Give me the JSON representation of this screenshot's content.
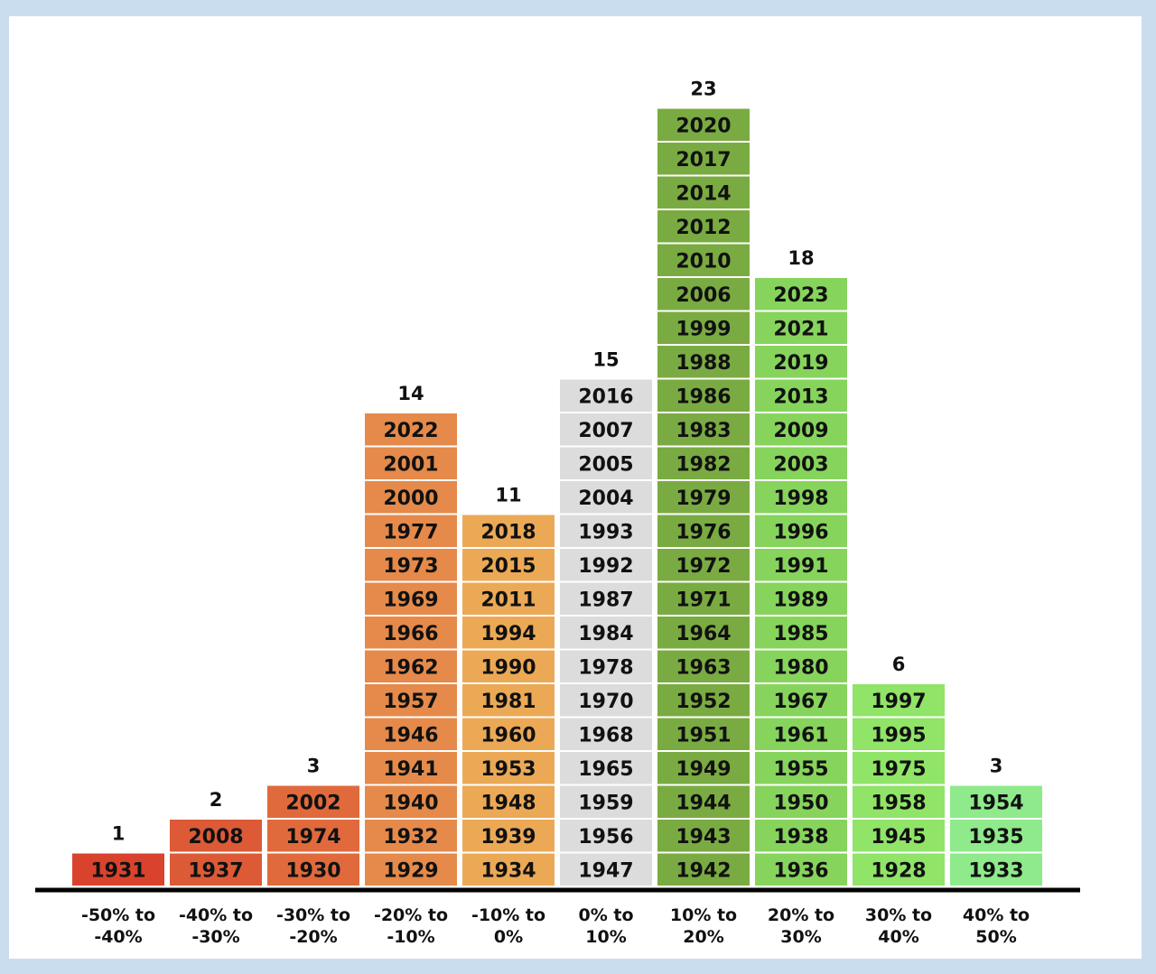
{
  "chart_data": {
    "type": "bar",
    "title": "",
    "xlabel": "",
    "ylabel": "",
    "categories": [
      [
        "-50% to",
        "-40%"
      ],
      [
        "-40% to",
        "-30%"
      ],
      [
        "-30% to",
        "-20%"
      ],
      [
        "-20% to",
        "-10%"
      ],
      [
        "-10% to",
        "0%"
      ],
      [
        "0% to",
        "10%"
      ],
      [
        "10% to",
        "20%"
      ],
      [
        "20% to",
        "30%"
      ],
      [
        "30% to",
        "40%"
      ],
      [
        "40% to",
        "50%"
      ]
    ],
    "values": [
      1,
      2,
      3,
      14,
      11,
      15,
      23,
      18,
      6,
      3
    ],
    "years": [
      [
        "1931"
      ],
      [
        "2008",
        "1937"
      ],
      [
        "2002",
        "1974",
        "1930"
      ],
      [
        "2022",
        "2001",
        "2000",
        "1977",
        "1973",
        "1969",
        "1966",
        "1962",
        "1957",
        "1946",
        "1941",
        "1940",
        "1932",
        "1929"
      ],
      [
        "2018",
        "2015",
        "2011",
        "1994",
        "1990",
        "1981",
        "1960",
        "1953",
        "1948",
        "1939",
        "1934"
      ],
      [
        "2016",
        "2007",
        "2005",
        "2004",
        "1993",
        "1992",
        "1987",
        "1984",
        "1978",
        "1970",
        "1968",
        "1965",
        "1959",
        "1956",
        "1947"
      ],
      [
        "2020",
        "2017",
        "2014",
        "2012",
        "2010",
        "2006",
        "1999",
        "1988",
        "1986",
        "1983",
        "1982",
        "1979",
        "1976",
        "1972",
        "1971",
        "1964",
        "1963",
        "1952",
        "1951",
        "1949",
        "1944",
        "1943",
        "1942"
      ],
      [
        "2023",
        "2021",
        "2019",
        "2013",
        "2009",
        "2003",
        "1998",
        "1996",
        "1991",
        "1989",
        "1985",
        "1980",
        "1967",
        "1961",
        "1955",
        "1950",
        "1938",
        "1936"
      ],
      [
        "1997",
        "1995",
        "1975",
        "1958",
        "1945",
        "1928"
      ],
      [
        "1954",
        "1935",
        "1933"
      ]
    ],
    "colors": [
      "#d9432e",
      "#dc5a36",
      "#e06a3c",
      "#e58a4a",
      "#eba956",
      "#dcdcdc",
      "#7aab42",
      "#86d45c",
      "#90e468",
      "#8eea8a"
    ],
    "ylim": [
      0,
      23
    ]
  }
}
